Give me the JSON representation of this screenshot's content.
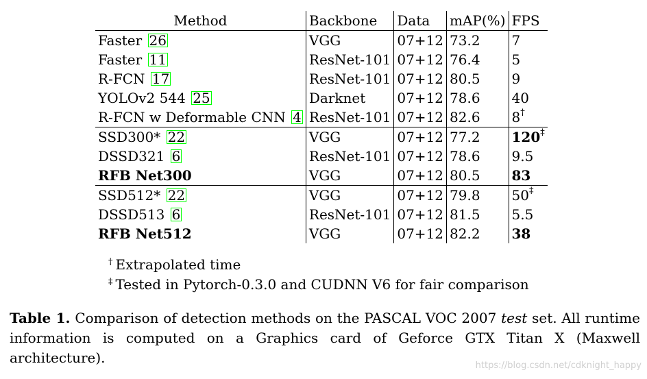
{
  "table": {
    "headers": [
      "Method",
      "Backbone",
      "Data",
      "mAP(%)",
      "FPS"
    ],
    "groups": [
      {
        "rows": [
          {
            "method": "Faster",
            "cite": "26",
            "backbone": "VGG",
            "data": "07+12",
            "map": "73.2",
            "fps": "7",
            "fps_note": "",
            "method_bold": false,
            "map_bold": false,
            "fps_bold": false
          },
          {
            "method": "Faster",
            "cite": "11",
            "backbone": "ResNet-101",
            "data": "07+12",
            "map": "76.4",
            "fps": "5",
            "fps_note": "",
            "method_bold": false,
            "map_bold": false,
            "fps_bold": false
          },
          {
            "method": "R-FCN",
            "cite": "17",
            "backbone": "ResNet-101",
            "data": "07+12",
            "map": "80.5",
            "fps": "9",
            "fps_note": "",
            "method_bold": false,
            "map_bold": false,
            "fps_bold": false
          },
          {
            "method": "YOLOv2 544",
            "cite": "25",
            "backbone": "Darknet",
            "data": "07+12",
            "map": "78.6",
            "fps": "40",
            "fps_note": "",
            "method_bold": false,
            "map_bold": false,
            "fps_bold": false
          },
          {
            "method": "R-FCN w Deformable CNN",
            "cite": "4",
            "backbone": "ResNet-101",
            "data": "07+12",
            "map": "82.6",
            "fps": "8",
            "fps_note": "†",
            "method_bold": false,
            "map_bold": true,
            "fps_bold": false
          }
        ]
      },
      {
        "rows": [
          {
            "method": "SSD300*",
            "cite": "22",
            "backbone": "VGG",
            "data": "07+12",
            "map": "77.2",
            "fps": "120",
            "fps_note": "‡",
            "method_bold": false,
            "map_bold": false,
            "fps_bold": true
          },
          {
            "method": "DSSD321",
            "cite": "6",
            "backbone": "ResNet-101",
            "data": "07+12",
            "map": "78.6",
            "fps": "9.5",
            "fps_note": "",
            "method_bold": false,
            "map_bold": false,
            "fps_bold": false
          },
          {
            "method": "RFB Net300",
            "cite": "",
            "backbone": "VGG",
            "data": "07+12",
            "map": "80.5",
            "fps": "83",
            "fps_note": "",
            "method_bold": true,
            "map_bold": true,
            "fps_bold": true
          }
        ]
      },
      {
        "rows": [
          {
            "method": "SSD512*",
            "cite": "22",
            "backbone": "VGG",
            "data": "07+12",
            "map": "79.8",
            "fps": "50",
            "fps_note": "‡",
            "method_bold": false,
            "map_bold": false,
            "fps_bold": false
          },
          {
            "method": "DSSD513",
            "cite": "6",
            "backbone": "ResNet-101",
            "data": "07+12",
            "map": "81.5",
            "fps": "5.5",
            "fps_note": "",
            "method_bold": false,
            "map_bold": false,
            "fps_bold": false
          },
          {
            "method": "RFB Net512",
            "cite": "",
            "backbone": "VGG",
            "data": "07+12",
            "map": "82.2",
            "fps": "38",
            "fps_note": "",
            "method_bold": true,
            "map_bold": true,
            "fps_bold": true
          }
        ]
      }
    ]
  },
  "footnotes": [
    {
      "mark": "†",
      "text": "Extrapolated time"
    },
    {
      "mark": "‡",
      "text": "Tested in Pytorch-0.3.0 and CUDNN V6 for fair comparison"
    }
  ],
  "caption": {
    "label": "Table 1.",
    "text_before": "Comparison of detection methods on the PASCAL VOC 2007",
    "italic_word": "test",
    "text_after": "set. All runtime information is computed on a Graphics card of Geforce GTX Titan X (Maxwell architecture)."
  },
  "watermark": "https://blog.csdn.net/cdknight_happy",
  "colors": {
    "cite_box": "#00ff00",
    "watermark": "#cfcfcf"
  }
}
